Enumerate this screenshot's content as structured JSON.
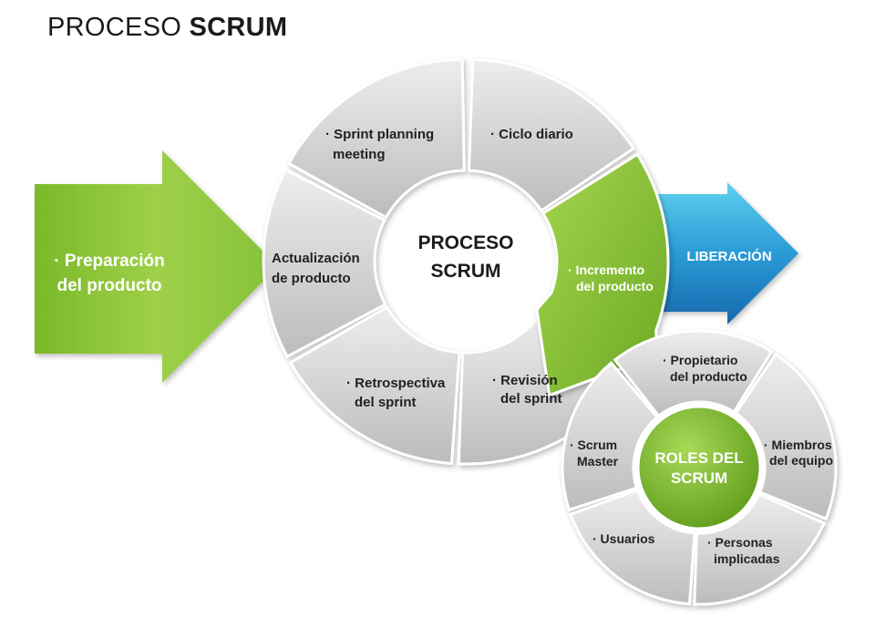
{
  "title": {
    "part1": "PROCESO ",
    "part2": "SCRUM"
  },
  "prep_arrow": {
    "line1": "· Preparación",
    "line2": "del producto"
  },
  "center": {
    "line1": "PROCESO",
    "line2": "SCRUM"
  },
  "segments": {
    "sprint_planning": {
      "line1": "· Sprint planning",
      "line2": "meeting"
    },
    "ciclo_diario": {
      "line1": "· Ciclo diario"
    },
    "incremento": {
      "line1": "· Incremento",
      "line2": "del producto"
    },
    "revision": {
      "line1": "· Revisión",
      "line2": "del sprint"
    },
    "retrospectiva": {
      "line1": "· Retrospectiva",
      "line2": "del sprint"
    },
    "actualizacion": {
      "line1": "Actualización",
      "line2": "de producto"
    }
  },
  "release_arrow": {
    "label": "LIBERACIÓN"
  },
  "roles": {
    "center_line1": "ROLES DEL",
    "center_line2": "SCRUM",
    "items": {
      "propietario": {
        "line1": "· Propietario",
        "line2": "del producto"
      },
      "miembros": {
        "line1": "· Miembros",
        "line2": "del equipo"
      },
      "personas": {
        "line1": "· Personas",
        "line2": "implicadas"
      },
      "usuarios": {
        "line1": "· Usuarios"
      },
      "scrum_master": {
        "line1": "· Scrum",
        "line2": "Master"
      }
    }
  },
  "colors": {
    "green": "#8cc63f",
    "green_dark": "#5e9a1d",
    "blue": "#1a7fc4",
    "blue_light": "#5fd0ef",
    "gray": "#d4d4d4",
    "gray_dark": "#b5b5b5"
  }
}
